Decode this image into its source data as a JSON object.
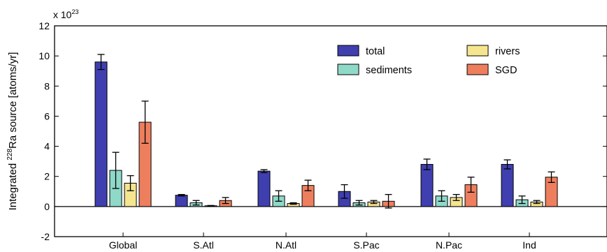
{
  "chart_data": {
    "type": "bar",
    "ylabel_prefix": "Integrated ",
    "ylabel_sup": "228",
    "ylabel_suffix": "Ra source [atoms/yr]",
    "multiplier_base": "x 10",
    "multiplier_exp": "23",
    "ylim": [
      -2,
      12
    ],
    "yticks": [
      -2,
      0,
      2,
      4,
      6,
      8,
      10,
      12
    ],
    "categories": [
      "Global",
      "S.Atl",
      "N.Atl",
      "S.Pac",
      "N.Pac",
      "Ind"
    ],
    "series": [
      {
        "name": "total",
        "color": "#3f3fb0",
        "values": [
          9.6,
          0.75,
          2.35,
          1.0,
          2.8,
          2.8
        ],
        "err": [
          0.5,
          0.05,
          0.1,
          0.45,
          0.35,
          0.3
        ]
      },
      {
        "name": "sediments",
        "color": "#8fd9c9",
        "values": [
          2.4,
          0.25,
          0.7,
          0.25,
          0.7,
          0.45
        ],
        "err": [
          1.2,
          0.15,
          0.35,
          0.15,
          0.35,
          0.25
        ]
      },
      {
        "name": "rivers",
        "color": "#f5e58f",
        "values": [
          1.55,
          0.05,
          0.2,
          0.3,
          0.6,
          0.3
        ],
        "err": [
          0.5,
          0.02,
          0.05,
          0.1,
          0.2,
          0.1
        ]
      },
      {
        "name": "SGD",
        "color": "#ee7f5e",
        "values": [
          5.6,
          0.4,
          1.4,
          0.35,
          1.45,
          1.95
        ],
        "err": [
          1.4,
          0.2,
          0.35,
          0.45,
          0.5,
          0.35
        ]
      }
    ],
    "grid": false,
    "legend_position": "top-right"
  }
}
